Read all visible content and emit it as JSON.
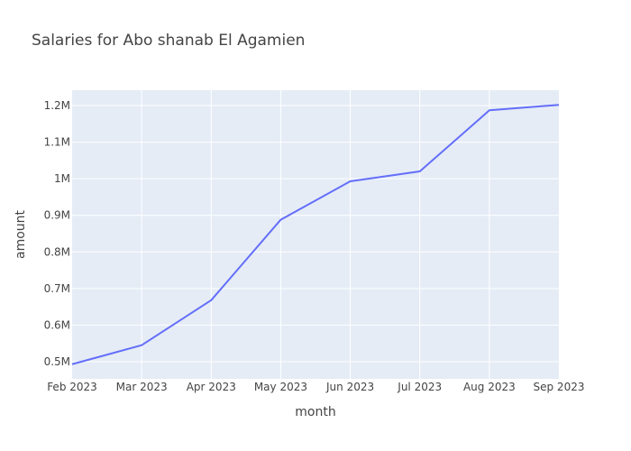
{
  "chart_data": {
    "type": "line",
    "title": "Salaries for Abo shanab El Agamien",
    "xlabel": "month",
    "ylabel": "amount",
    "categories": [
      "Feb 2023",
      "Mar 2023",
      "Apr 2023",
      "May 2023",
      "Jun 2023",
      "Jul 2023",
      "Aug 2023",
      "Sep 2023"
    ],
    "series": [
      {
        "values": [
          493000,
          545000,
          668000,
          888000,
          993000,
          1020000,
          1187000,
          1202000
        ]
      }
    ],
    "y_ticks": [
      500000,
      600000,
      700000,
      800000,
      900000,
      1000000,
      1100000,
      1200000
    ],
    "y_tick_labels": [
      "0.5M",
      "0.6M",
      "0.7M",
      "0.8M",
      "0.9M",
      "1M",
      "1.1M",
      "1.2M"
    ],
    "ylim": [
      453000,
      1242000
    ],
    "grid": true,
    "colors": {
      "plot_background": "#E5ECF6",
      "line": "#636EFA",
      "grid": "#ffffff"
    }
  }
}
